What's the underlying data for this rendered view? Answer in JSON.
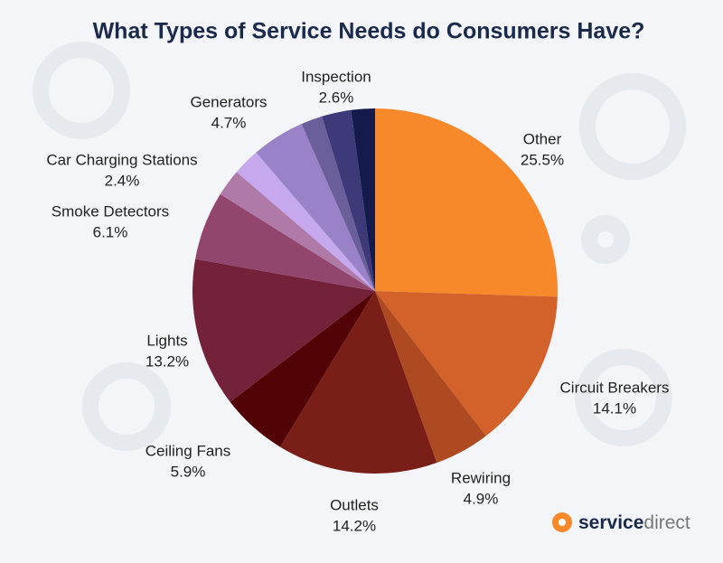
{
  "chart_data": {
    "type": "pie",
    "title": "What Types of Service Needs do Consumers Have?",
    "categories": [
      "Other",
      "Circuit Breakers",
      "Rewiring",
      "Outlets",
      "Ceiling Fans",
      "Lights",
      "Smoke Detectors",
      null,
      "Car Charging Stations",
      "Generators",
      null,
      "Inspection",
      null
    ],
    "values": [
      25.5,
      14.1,
      4.9,
      14.2,
      5.9,
      13.2,
      6.1,
      2.4,
      2.4,
      4.7,
      1.9,
      2.6,
      2.1
    ],
    "value_labels": [
      "25.5%",
      "14.1%",
      "4.9%",
      "14.2%",
      "5.9%",
      "13.2%",
      "6.1%",
      null,
      "2.4%",
      "4.7%",
      null,
      "2.6%",
      null
    ],
    "colors": [
      "#f7892a",
      "#d2622a",
      "#ad4a22",
      "#7a1f18",
      "#520305",
      "#74213a",
      "#92466e",
      "#b07aa8",
      "#c6a8ee",
      "#9a82c8",
      "#6b5f9a",
      "#3e3a7a",
      "#151a4d"
    ]
  },
  "logo": {
    "bold": "service",
    "light": "direct"
  }
}
